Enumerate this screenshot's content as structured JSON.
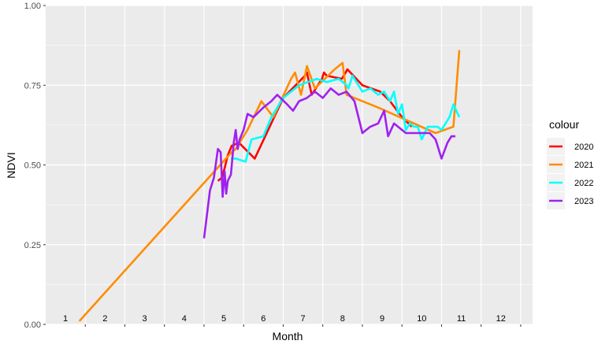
{
  "chart_data": {
    "type": "line",
    "xlabel": "Month",
    "ylabel": "NDVI",
    "xlim": [
      0,
      12.3
    ],
    "ylim": [
      0,
      1
    ],
    "y_ticks": [
      "0.00",
      "0.25",
      "0.50",
      "0.75",
      "1.00"
    ],
    "y_tick_values": [
      0,
      0.25,
      0.5,
      0.75,
      1.0
    ],
    "month_labels": [
      "1",
      "2",
      "3",
      "4",
      "5",
      "6",
      "7",
      "8",
      "9",
      "10",
      "11",
      "12"
    ],
    "month_label_positions": [
      0.5,
      1.5,
      2.5,
      3.5,
      4.5,
      5.5,
      6.5,
      7.5,
      8.5,
      9.5,
      10.5,
      11.5
    ],
    "month_boundaries": [
      1,
      2,
      3,
      4,
      5,
      6,
      7,
      8,
      9,
      10,
      11,
      12
    ],
    "grid": true,
    "legend_position": "right",
    "legend_title": "colour",
    "series": [
      {
        "name": "2020",
        "color": "#ff0000",
        "x": [
          4.35,
          4.45,
          4.52,
          4.6,
          4.7,
          4.88,
          5.28,
          6.0,
          6.55,
          6.6,
          6.72,
          6.98,
          7.03,
          7.1,
          7.48,
          7.58,
          7.62,
          8.0,
          8.45,
          8.7,
          9.0,
          9.25
        ],
        "y": [
          0.45,
          0.46,
          0.49,
          0.53,
          0.56,
          0.57,
          0.52,
          0.71,
          0.78,
          0.79,
          0.72,
          0.77,
          0.79,
          0.78,
          0.77,
          0.79,
          0.8,
          0.75,
          0.73,
          0.7,
          0.65,
          0.62
        ]
      },
      {
        "name": "2021",
        "color": "#ff8c00",
        "x": [
          0.85,
          4.7,
          4.8,
          5.1,
          5.45,
          5.75,
          6.2,
          6.3,
          6.45,
          6.6,
          6.8,
          7.3,
          7.5,
          7.6,
          8.4,
          9.85,
          10.3,
          10.45
        ],
        "y": [
          0.01,
          0.54,
          0.55,
          0.61,
          0.7,
          0.65,
          0.77,
          0.79,
          0.72,
          0.81,
          0.74,
          0.8,
          0.82,
          0.72,
          0.68,
          0.6,
          0.62,
          0.86
        ]
      },
      {
        "name": "2022",
        "color": "#00ffff",
        "x": [
          4.68,
          4.8,
          5.05,
          5.2,
          5.5,
          5.7,
          6.0,
          6.4,
          6.85,
          7.1,
          7.4,
          7.6,
          7.65,
          7.75,
          7.9,
          8.0,
          8.2,
          8.4,
          8.55,
          8.7,
          8.8,
          8.9,
          9.0,
          9.1,
          9.2,
          9.3,
          9.4,
          9.5,
          9.65,
          9.75,
          9.9,
          10.0,
          10.2,
          10.3,
          10.45
        ],
        "y": [
          0.52,
          0.52,
          0.51,
          0.58,
          0.59,
          0.65,
          0.71,
          0.75,
          0.77,
          0.76,
          0.77,
          0.75,
          0.74,
          0.78,
          0.75,
          0.73,
          0.74,
          0.72,
          0.73,
          0.7,
          0.73,
          0.66,
          0.69,
          0.61,
          0.63,
          0.62,
          0.62,
          0.58,
          0.62,
          0.62,
          0.62,
          0.61,
          0.65,
          0.69,
          0.65
        ]
      },
      {
        "name": "2023",
        "color": "#a020f0",
        "x": [
          4.0,
          4.15,
          4.25,
          4.35,
          4.42,
          4.47,
          4.52,
          4.56,
          4.6,
          4.68,
          4.75,
          4.8,
          4.85,
          4.9,
          5.0,
          5.1,
          5.25,
          5.5,
          5.7,
          5.85,
          6.1,
          6.25,
          6.4,
          6.6,
          6.8,
          7.0,
          7.2,
          7.4,
          7.6,
          7.8,
          8.0,
          8.2,
          8.4,
          8.55,
          8.65,
          8.8,
          8.9,
          9.0,
          9.1,
          9.25,
          9.5,
          9.7,
          9.85,
          10.0,
          10.15,
          10.25,
          10.35
        ],
        "y": [
          0.27,
          0.42,
          0.46,
          0.55,
          0.54,
          0.4,
          0.48,
          0.41,
          0.45,
          0.47,
          0.57,
          0.61,
          0.55,
          0.58,
          0.61,
          0.66,
          0.65,
          0.68,
          0.7,
          0.72,
          0.69,
          0.67,
          0.7,
          0.71,
          0.73,
          0.71,
          0.74,
          0.72,
          0.73,
          0.7,
          0.6,
          0.62,
          0.63,
          0.67,
          0.59,
          0.63,
          0.62,
          0.61,
          0.6,
          0.6,
          0.6,
          0.6,
          0.58,
          0.52,
          0.57,
          0.59,
          0.59
        ]
      }
    ]
  }
}
